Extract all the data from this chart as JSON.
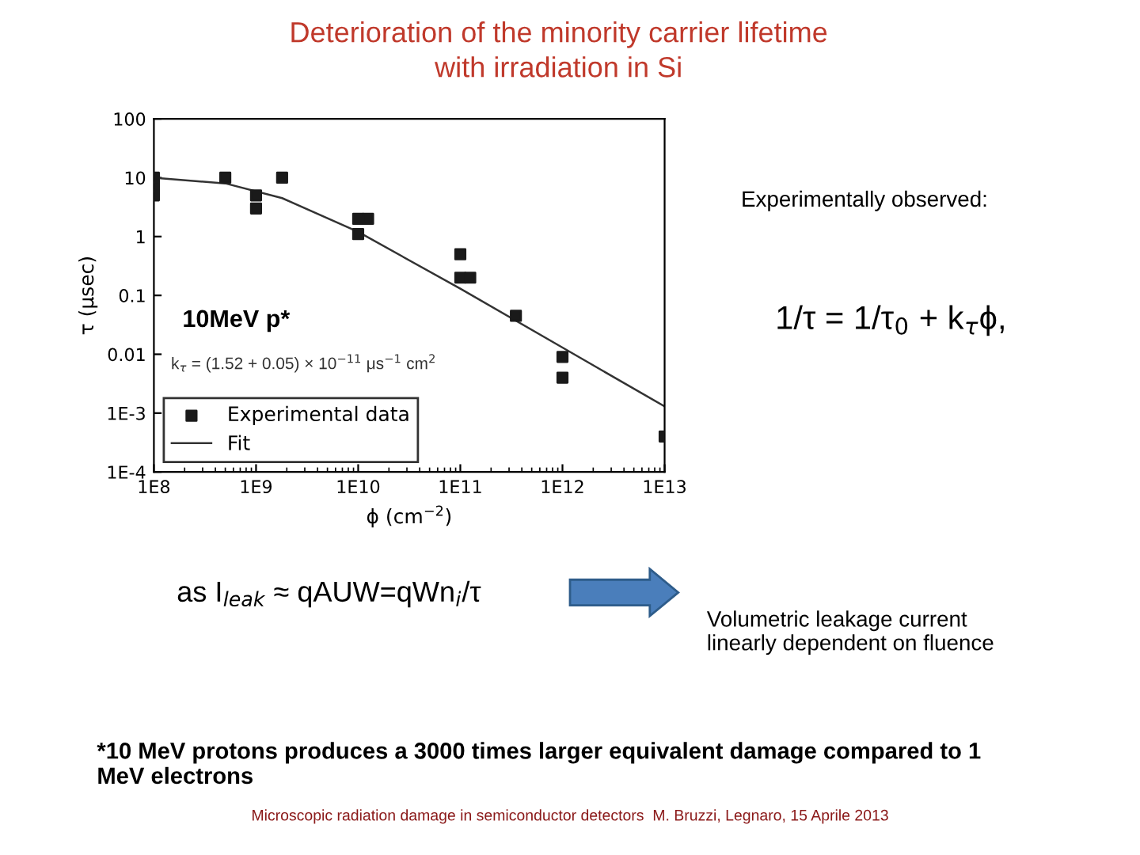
{
  "chart_data": {
    "type": "scatter",
    "title": "Deterioration of the minority carrier lifetime\nwith irradiation in Si",
    "xlabel": "ϕ (cm$^{−2}$)",
    "ylabel": "τ (μsec)",
    "log": "xy",
    "xlim": [
      100000000.0,
      10000000000000.0
    ],
    "ylim": [
      0.0001,
      100
    ],
    "xticks": [
      {
        "value": 100000000.0,
        "label": "1E8"
      },
      {
        "value": 1000000000.0,
        "label": "1E9"
      },
      {
        "value": 10000000000.0,
        "label": "1E10"
      },
      {
        "value": 100000000000.0,
        "label": "1E11"
      },
      {
        "value": 1000000000000.0,
        "label": "1E12"
      },
      {
        "value": 10000000000000.0,
        "label": "1E13"
      }
    ],
    "yticks": [
      {
        "value": 0.0001,
        "label": "1E-4"
      },
      {
        "value": 0.001,
        "label": "1E-3"
      },
      {
        "value": 0.01,
        "label": "0.01"
      },
      {
        "value": 0.1,
        "label": "0.1"
      },
      1,
      10,
      100
    ],
    "series": [
      {
        "name": "Experimental data",
        "color": "#1a1a1a",
        "marker": "square",
        "x": [
          100000000.0,
          100000000.0,
          100000000.0,
          500000000.0,
          1000000000.0,
          1000000000.0,
          1800000000.0,
          10000000000.0,
          10000000000.0,
          12500000000.0,
          100000000000.0,
          100000000000.0,
          125000000000.0,
          350000000000.0,
          1000000000000.0,
          1000000000000.0,
          10000000000000.0
        ],
        "values": [
          10,
          7,
          5,
          10,
          5,
          3,
          10,
          2,
          1.1,
          2,
          0.5,
          0.2,
          0.2,
          0.045,
          0.009,
          0.004,
          0.0004
        ]
      },
      {
        "name": "Fit",
        "type": "line",
        "color": "#333333",
        "line_style": "solid",
        "x": [
          100000000.0,
          500000000.0,
          1800000000.0,
          10000000000.0,
          100000000000.0,
          1000000000000.0,
          10000000000000.0
        ],
        "values": [
          10,
          8,
          4.5,
          1.2,
          0.13,
          0.013,
          0.0013
        ]
      }
    ],
    "legend": "bottom left",
    "grid": false,
    "annotations": [
      "10MeV p*",
      "k$_{τ}$ = (1.52 + 0.05) × 10$^{−11}$ μs$^{−1}$ cm$^{2}$",
      "Experimentally observed:",
      "1/τ = 1/τ$_{0}$ + k$_{τ}$ϕ,",
      "as I$_{leak}$ ≈ qAUW=qWn$_{i}$/τ",
      "Volumetric leakage current\nlinearly dependent on fluence",
      "*10 MeV protons produces a 3000 times larger equivalent damage compared to 1 MeV electrons",
      "Microscopic radiation damage in semiconductor detectors  M. Bruzzi, Legnaro, 15 Aprile 2013"
    ]
  }
}
